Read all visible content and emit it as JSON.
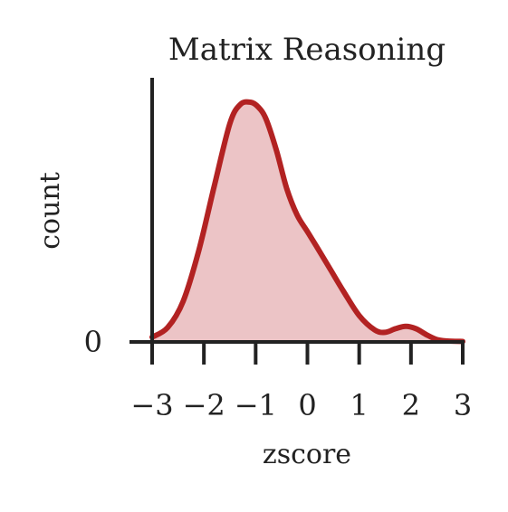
{
  "chart_data": {
    "type": "area",
    "title": "Matrix Reasoning",
    "xlabel": "zscore",
    "ylabel": "count",
    "xlim": [
      -3,
      3
    ],
    "ylim": [
      0,
      1
    ],
    "x_ticks": [
      -3,
      -2,
      -1,
      0,
      1,
      2,
      3
    ],
    "x_tick_labels": [
      "−3",
      "−2",
      "−1",
      "0",
      "1",
      "2",
      "3"
    ],
    "y_ticks": [
      0
    ],
    "y_tick_labels": [
      "0"
    ],
    "grid": false,
    "series": [
      {
        "x": [
          -3.0,
          -2.7,
          -2.4,
          -2.1,
          -1.8,
          -1.5,
          -1.3,
          -1.1,
          -0.95,
          -0.8,
          -0.6,
          -0.4,
          -0.2,
          0.0,
          0.2,
          0.45,
          0.7,
          1.0,
          1.3,
          1.5,
          1.7,
          1.9,
          2.1,
          2.3,
          2.5,
          2.7,
          3.0
        ],
        "y": [
          0.02,
          0.06,
          0.17,
          0.38,
          0.65,
          0.91,
          0.99,
          1.0,
          0.98,
          0.93,
          0.8,
          0.64,
          0.53,
          0.46,
          0.39,
          0.3,
          0.21,
          0.11,
          0.05,
          0.04,
          0.055,
          0.065,
          0.055,
          0.03,
          0.01,
          0.004,
          0.002
        ]
      }
    ],
    "colors": {
      "line": "#b22222",
      "fill": "#ecc4c6",
      "axis": "#222222"
    }
  }
}
